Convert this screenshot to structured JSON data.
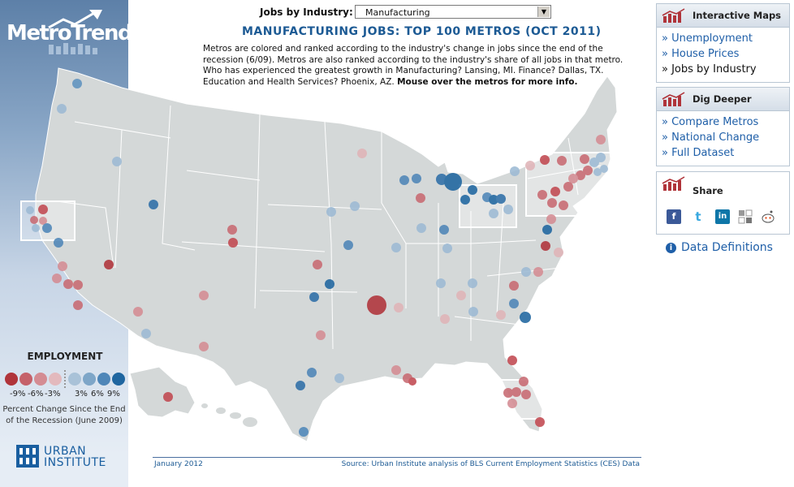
{
  "header": {
    "selector_label": "Jobs by Industry:",
    "selected_industry": "Manufacturing",
    "title": "MANUFACTURING JOBS: TOP 100 METROS (OCT 2011)",
    "intro_lines": [
      "Metros are colored and ranked according to the industry's change in jobs since the end of the",
      "recession (6/09). Metros are also ranked according to the industry's share of all jobs in that metro.",
      "Who has experienced the greatest growth in Manufacturing? Lansing, MI. Finance? Dallas, TX.",
      "Education and Health Services? Phoenix, AZ."
    ],
    "intro_bold": "Mouse over the metros for more info."
  },
  "logo": {
    "text": "MetroTrends"
  },
  "legend": {
    "title": "EMPLOYMENT",
    "tick_labels": [
      "-9%",
      "-6%",
      "-3%",
      "3%",
      "6%",
      "9%"
    ],
    "caption_lines": [
      "Percent Change Since the End",
      "of the Recession (June 2009)"
    ],
    "scale_colors": [
      "#b0343a",
      "#c5616a",
      "#d48c93",
      "#e3b9bd",
      "#a9c2d8",
      "#7ea6c8",
      "#4e86b8",
      "#1f66a0"
    ]
  },
  "publisher": {
    "name_line1": "URBAN",
    "name_line2": "INSTITUTE"
  },
  "footer": {
    "date": "January 2012",
    "source": "Source: Urban Institute analysis of BLS Current Employment Statistics (CES) Data"
  },
  "panels": {
    "interactive_maps": {
      "title": "Interactive Maps",
      "links": [
        "Unemployment",
        "House Prices",
        "Jobs by Industry"
      ],
      "current": "Jobs by Industry"
    },
    "dig_deeper": {
      "title": "Dig Deeper",
      "links": [
        "Compare Metros",
        "National Change",
        "Full Dataset"
      ]
    },
    "share": {
      "title": "Share",
      "icons": [
        "facebook-icon",
        "twitter-icon",
        "linkedin-icon",
        "delicious-icon",
        "reddit-icon"
      ]
    }
  },
  "data_definitions": "Data Definitions",
  "map": {
    "land_color": "#d4d8d8",
    "border_color": "#ffffff",
    "inset_frames": [
      "bay-area",
      "great-lakes-ohio",
      "northeast-corridor",
      "south-florida"
    ]
  }
}
